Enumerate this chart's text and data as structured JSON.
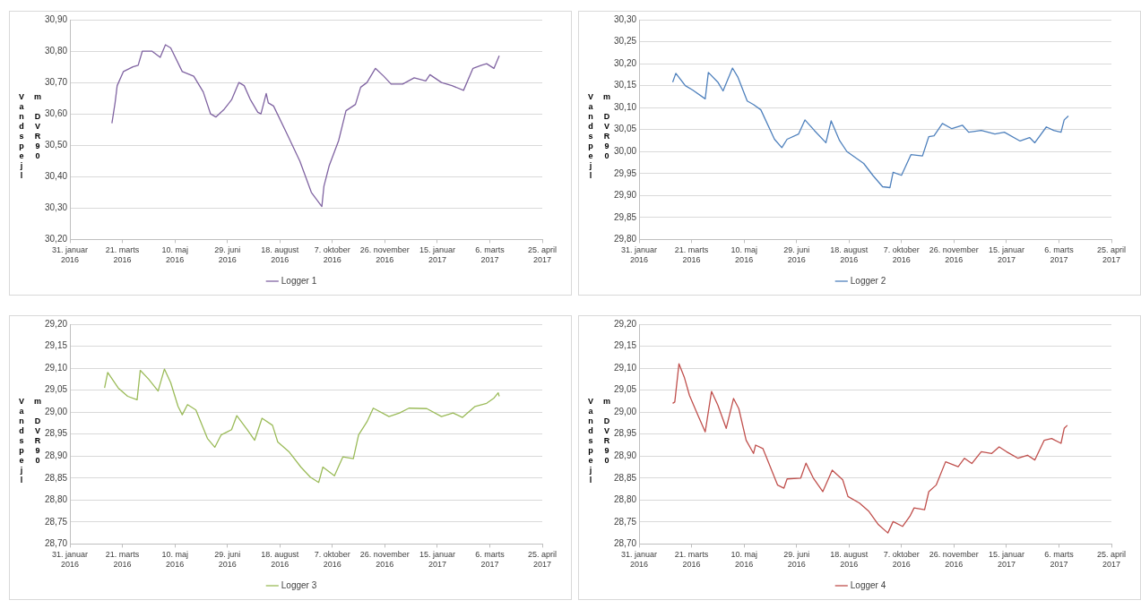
{
  "chart_data": [
    {
      "type": "line",
      "ylabel": "Vandspejl m DVR90",
      "legend": "bottom",
      "grid": "y",
      "marker": "none",
      "xlim": [
        "2016-01-31",
        "2017-04-25"
      ],
      "xticks": [
        {
          "value": "2016-01-31",
          "label": "31. januar 2016"
        },
        {
          "value": "2016-03-21",
          "label": "21. marts 2016"
        },
        {
          "value": "2016-05-10",
          "label": "10. maj 2016"
        },
        {
          "value": "2016-06-29",
          "label": "29. juni 2016"
        },
        {
          "value": "2016-08-18",
          "label": "18. august 2016"
        },
        {
          "value": "2016-10-07",
          "label": "7. oktober 2016"
        },
        {
          "value": "2016-11-26",
          "label": "26. november 2016"
        },
        {
          "value": "2017-01-15",
          "label": "15. januar 2017"
        },
        {
          "value": "2017-03-06",
          "label": "6. marts 2017"
        },
        {
          "value": "2017-04-25",
          "label": "25. april 2017"
        }
      ],
      "ylim": [
        30.2,
        30.9
      ],
      "yticks": [
        {
          "value": 30.2,
          "label": "30,20"
        },
        {
          "value": 30.3,
          "label": "30,30"
        },
        {
          "value": 30.4,
          "label": "30,40"
        },
        {
          "value": 30.5,
          "label": "30,50"
        },
        {
          "value": 30.6,
          "label": "30,60"
        },
        {
          "value": 30.7,
          "label": "30,70"
        },
        {
          "value": 30.8,
          "label": "30,80"
        },
        {
          "value": 30.9,
          "label": "30,90"
        }
      ],
      "x": [
        "2016-03-11",
        "2016-03-14",
        "2016-03-16",
        "2016-03-22",
        "2016-03-31",
        "2016-04-05",
        "2016-04-09",
        "2016-04-18",
        "2016-04-26",
        "2016-05-01",
        "2016-05-06",
        "2016-05-17",
        "2016-05-28",
        "2016-06-06",
        "2016-06-13",
        "2016-06-18",
        "2016-06-26",
        "2016-07-03",
        "2016-07-10",
        "2016-07-15",
        "2016-07-21",
        "2016-07-28",
        "2016-07-31",
        "2016-08-05",
        "2016-08-07",
        "2016-08-12",
        "2016-08-25",
        "2016-09-06",
        "2016-09-17",
        "2016-09-27",
        "2016-09-29",
        "2016-10-04",
        "2016-10-13",
        "2016-10-20",
        "2016-10-29",
        "2016-11-03",
        "2016-11-09",
        "2016-11-17",
        "2016-11-25",
        "2016-12-02",
        "2016-12-13",
        "2016-12-24",
        "2017-01-04",
        "2017-01-08",
        "2017-01-19",
        "2017-01-29",
        "2017-02-09",
        "2017-02-18",
        "2017-02-26",
        "2017-03-03",
        "2017-03-10",
        "2017-03-15"
      ],
      "series": [
        {
          "name": "Logger 1",
          "color": "#8064a2",
          "values": [
            30.57,
            30.635,
            30.69,
            30.735,
            30.75,
            30.755,
            30.8,
            30.8,
            30.78,
            30.82,
            30.81,
            30.735,
            30.72,
            30.67,
            30.6,
            30.59,
            30.615,
            30.645,
            30.7,
            30.69,
            30.645,
            30.605,
            30.6,
            30.665,
            30.635,
            30.625,
            30.535,
            30.45,
            30.35,
            30.305,
            30.37,
            30.435,
            30.515,
            30.61,
            30.63,
            30.685,
            30.7,
            30.745,
            30.72,
            30.695,
            30.695,
            30.715,
            30.705,
            30.725,
            30.7,
            30.69,
            30.675,
            30.745,
            30.755,
            30.76,
            30.745,
            30.785
          ]
        }
      ]
    },
    {
      "type": "line",
      "ylabel": "Vandspejl m DVR90",
      "legend": "bottom",
      "grid": "y",
      "marker": "none",
      "xlim": [
        "2016-01-31",
        "2017-04-25"
      ],
      "xticks": [
        {
          "value": "2016-01-31",
          "label": "31. januar 2016"
        },
        {
          "value": "2016-03-21",
          "label": "21. marts 2016"
        },
        {
          "value": "2016-05-10",
          "label": "10. maj 2016"
        },
        {
          "value": "2016-06-29",
          "label": "29. juni 2016"
        },
        {
          "value": "2016-08-18",
          "label": "18. august 2016"
        },
        {
          "value": "2016-10-07",
          "label": "7. oktober 2016"
        },
        {
          "value": "2016-11-26",
          "label": "26. november 2016"
        },
        {
          "value": "2017-01-15",
          "label": "15. januar 2017"
        },
        {
          "value": "2017-03-06",
          "label": "6. marts 2017"
        },
        {
          "value": "2017-04-25",
          "label": "25. april 2017"
        }
      ],
      "ylim": [
        29.8,
        30.3
      ],
      "yticks": [
        {
          "value": 29.8,
          "label": "29,80"
        },
        {
          "value": 29.85,
          "label": "29,85"
        },
        {
          "value": 29.9,
          "label": "29,90"
        },
        {
          "value": 29.95,
          "label": "29,95"
        },
        {
          "value": 30.0,
          "label": "30,00"
        },
        {
          "value": 30.05,
          "label": "30,05"
        },
        {
          "value": 30.1,
          "label": "30,10"
        },
        {
          "value": 30.15,
          "label": "30,15"
        },
        {
          "value": 30.2,
          "label": "30,20"
        },
        {
          "value": 30.25,
          "label": "30,25"
        },
        {
          "value": 30.3,
          "label": "30,30"
        }
      ],
      "x": [
        "2016-03-03",
        "2016-03-06",
        "2016-03-15",
        "2016-03-22",
        "2016-04-03",
        "2016-04-06",
        "2016-04-15",
        "2016-04-20",
        "2016-04-29",
        "2016-05-04",
        "2016-05-13",
        "2016-05-19",
        "2016-05-26",
        "2016-06-08",
        "2016-06-15",
        "2016-06-20",
        "2016-07-01",
        "2016-07-07",
        "2016-07-16",
        "2016-07-27",
        "2016-08-01",
        "2016-08-09",
        "2016-08-16",
        "2016-09-01",
        "2016-09-10",
        "2016-09-19",
        "2016-09-26",
        "2016-09-29",
        "2016-10-07",
        "2016-10-16",
        "2016-10-27",
        "2016-11-02",
        "2016-11-07",
        "2016-11-15",
        "2016-11-24",
        "2016-12-04",
        "2016-12-10",
        "2016-12-22",
        "2017-01-04",
        "2017-01-13",
        "2017-01-28",
        "2017-02-06",
        "2017-02-11",
        "2017-02-22",
        "2017-03-01",
        "2017-03-08",
        "2017-03-11",
        "2017-03-15"
      ],
      "series": [
        {
          "name": "Logger 2",
          "color": "#4f81bd",
          "values": [
            30.158,
            30.178,
            30.15,
            30.14,
            30.12,
            30.18,
            30.158,
            30.138,
            30.19,
            30.17,
            30.115,
            30.107,
            30.095,
            30.028,
            30.009,
            30.028,
            30.04,
            30.072,
            30.048,
            30.02,
            30.07,
            30.025,
            30.0,
            29.973,
            29.945,
            29.92,
            29.918,
            29.953,
            29.946,
            29.993,
            29.99,
            30.034,
            30.036,
            30.064,
            30.052,
            30.06,
            30.044,
            30.048,
            30.04,
            30.044,
            30.024,
            30.032,
            30.02,
            30.056,
            30.048,
            30.044,
            30.072,
            30.081
          ]
        }
      ]
    },
    {
      "type": "line",
      "ylabel": "Vandspejl m DVR90",
      "legend": "bottom",
      "grid": "y",
      "marker": "none",
      "xlim": [
        "2016-01-31",
        "2017-04-25"
      ],
      "xticks": [
        {
          "value": "2016-01-31",
          "label": "31. januar 2016"
        },
        {
          "value": "2016-03-21",
          "label": "21. marts 2016"
        },
        {
          "value": "2016-05-10",
          "label": "10. maj 2016"
        },
        {
          "value": "2016-06-29",
          "label": "29. juni 2016"
        },
        {
          "value": "2016-08-18",
          "label": "18. august 2016"
        },
        {
          "value": "2016-10-07",
          "label": "7. oktober 2016"
        },
        {
          "value": "2016-11-26",
          "label": "26. november 2016"
        },
        {
          "value": "2017-01-15",
          "label": "15. januar 2017"
        },
        {
          "value": "2017-03-06",
          "label": "6. marts 2017"
        },
        {
          "value": "2017-04-25",
          "label": "25. april 2017"
        }
      ],
      "ylim": [
        28.7,
        29.2
      ],
      "yticks": [
        {
          "value": 28.7,
          "label": "28,70"
        },
        {
          "value": 28.75,
          "label": "28,75"
        },
        {
          "value": 28.8,
          "label": "28,80"
        },
        {
          "value": 28.85,
          "label": "28,85"
        },
        {
          "value": 28.9,
          "label": "28,90"
        },
        {
          "value": 28.95,
          "label": "28,95"
        },
        {
          "value": 29.0,
          "label": "29,00"
        },
        {
          "value": 29.05,
          "label": "29,05"
        },
        {
          "value": 29.1,
          "label": "29,10"
        },
        {
          "value": 29.15,
          "label": "29,15"
        },
        {
          "value": 29.2,
          "label": "29,20"
        }
      ],
      "x": [
        "2016-03-04",
        "2016-03-07",
        "2016-03-17",
        "2016-03-26",
        "2016-04-04",
        "2016-04-07",
        "2016-04-15",
        "2016-04-24",
        "2016-04-30",
        "2016-05-06",
        "2016-05-13",
        "2016-05-17",
        "2016-05-22",
        "2016-05-30",
        "2016-06-10",
        "2016-06-17",
        "2016-06-23",
        "2016-07-03",
        "2016-07-08",
        "2016-07-18",
        "2016-07-25",
        "2016-08-01",
        "2016-08-11",
        "2016-08-16",
        "2016-08-27",
        "2016-09-07",
        "2016-09-16",
        "2016-09-24",
        "2016-09-28",
        "2016-10-09",
        "2016-10-17",
        "2016-10-27",
        "2016-11-01",
        "2016-11-09",
        "2016-11-15",
        "2016-11-30",
        "2016-12-10",
        "2016-12-19",
        "2017-01-05",
        "2017-01-19",
        "2017-01-30",
        "2017-02-08",
        "2017-02-20",
        "2017-03-03",
        "2017-03-10",
        "2017-03-14",
        "2017-03-15"
      ],
      "series": [
        {
          "name": "Logger 3",
          "color": "#9bbb59",
          "values": [
            29.055,
            29.09,
            29.055,
            29.036,
            29.028,
            29.095,
            29.075,
            29.048,
            29.098,
            29.067,
            29.013,
            28.994,
            29.017,
            29.005,
            28.94,
            28.92,
            28.948,
            28.96,
            28.992,
            28.96,
            28.936,
            28.986,
            28.97,
            28.932,
            28.909,
            28.875,
            28.852,
            28.84,
            28.875,
            28.855,
            28.898,
            28.894,
            28.948,
            28.978,
            29.009,
            28.99,
            28.998,
            29.009,
            29.008,
            28.99,
            28.998,
            28.988,
            29.013,
            29.02,
            29.032,
            29.044,
            29.036
          ]
        }
      ]
    },
    {
      "type": "line",
      "ylabel": "Vandspejl m DVR90",
      "legend": "bottom",
      "grid": "y",
      "marker": "none",
      "xlim": [
        "2016-01-31",
        "2017-04-25"
      ],
      "xticks": [
        {
          "value": "2016-01-31",
          "label": "31. januar 2016"
        },
        {
          "value": "2016-03-21",
          "label": "21. marts 2016"
        },
        {
          "value": "2016-05-10",
          "label": "10. maj 2016"
        },
        {
          "value": "2016-06-29",
          "label": "29. juni 2016"
        },
        {
          "value": "2016-08-18",
          "label": "18. august 2016"
        },
        {
          "value": "2016-10-07",
          "label": "7. oktober 2016"
        },
        {
          "value": "2016-11-26",
          "label": "26. november 2016"
        },
        {
          "value": "2017-01-15",
          "label": "15. januar 2017"
        },
        {
          "value": "2017-03-06",
          "label": "6. marts 2017"
        },
        {
          "value": "2017-04-25",
          "label": "25. april 2017"
        }
      ],
      "ylim": [
        28.7,
        29.2
      ],
      "yticks": [
        {
          "value": 28.7,
          "label": "28,70"
        },
        {
          "value": 28.75,
          "label": "28,75"
        },
        {
          "value": 28.8,
          "label": "28,80"
        },
        {
          "value": 28.85,
          "label": "28,85"
        },
        {
          "value": 28.9,
          "label": "28,90"
        },
        {
          "value": 28.95,
          "label": "28,95"
        },
        {
          "value": 29.0,
          "label": "29,00"
        },
        {
          "value": 29.05,
          "label": "29,05"
        },
        {
          "value": 29.1,
          "label": "29,10"
        },
        {
          "value": 29.15,
          "label": "29,15"
        },
        {
          "value": 29.2,
          "label": "29,20"
        }
      ],
      "x": [
        "2016-03-03",
        "2016-03-05",
        "2016-03-09",
        "2016-03-14",
        "2016-03-19",
        "2016-03-27",
        "2016-04-03",
        "2016-04-09",
        "2016-04-15",
        "2016-04-23",
        "2016-04-30",
        "2016-05-05",
        "2016-05-12",
        "2016-05-19",
        "2016-05-21",
        "2016-05-28",
        "2016-06-11",
        "2016-06-17",
        "2016-06-20",
        "2016-07-03",
        "2016-07-08",
        "2016-07-15",
        "2016-07-24",
        "2016-08-02",
        "2016-08-12",
        "2016-08-17",
        "2016-08-28",
        "2016-09-06",
        "2016-09-15",
        "2016-09-24",
        "2016-09-29",
        "2016-10-08",
        "2016-10-15",
        "2016-10-19",
        "2016-10-29",
        "2016-11-02",
        "2016-11-09",
        "2016-11-18",
        "2016-11-30",
        "2016-12-06",
        "2016-12-13",
        "2016-12-22",
        "2017-01-01",
        "2017-01-08",
        "2017-01-15",
        "2017-01-26",
        "2017-02-04",
        "2017-02-11",
        "2017-02-20",
        "2017-02-27",
        "2017-03-08",
        "2017-03-11",
        "2017-03-14"
      ],
      "series": [
        {
          "name": "Logger 4",
          "color": "#c0504d",
          "values": [
            29.02,
            29.023,
            29.11,
            29.08,
            29.038,
            28.993,
            28.955,
            29.047,
            29.016,
            28.963,
            29.031,
            29.008,
            28.936,
            28.906,
            28.925,
            28.917,
            28.834,
            28.827,
            28.848,
            28.85,
            28.884,
            28.85,
            28.819,
            28.868,
            28.846,
            28.808,
            28.793,
            28.774,
            28.744,
            28.725,
            28.751,
            28.74,
            28.763,
            28.782,
            28.778,
            28.819,
            28.834,
            28.887,
            28.876,
            28.895,
            28.883,
            28.91,
            28.906,
            28.921,
            28.91,
            28.895,
            28.902,
            28.891,
            28.936,
            28.94,
            28.929,
            28.963,
            28.97
          ]
        }
      ]
    }
  ]
}
